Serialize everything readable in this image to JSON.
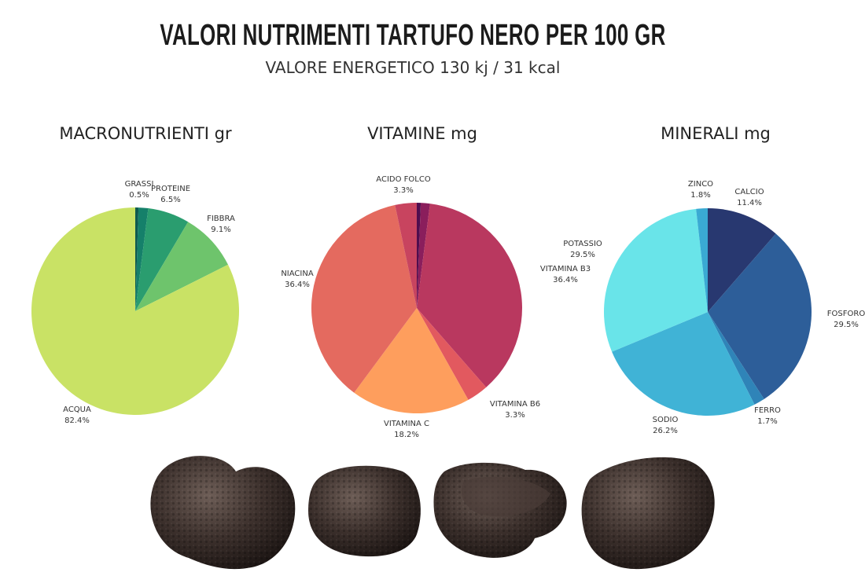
{
  "header": {
    "title": "VALORI NUTRIMENTI TARTUFO NERO PER 100 GR",
    "subtitle": "VALORE ENERGETICO 130 kj / 31 kcal"
  },
  "chart_data": [
    {
      "type": "pie",
      "title": "MACRONUTRIENTI gr",
      "start_angle_deg": 0,
      "direction": "clockwise",
      "slices": [
        {
          "label": "GRASSI",
          "value": 0.5,
          "display": "0.5%",
          "color": "#0e5a4f"
        },
        {
          "label": "",
          "value": 1.5,
          "display": "",
          "color": "#15806a"
        },
        {
          "label": "PROTEINE",
          "value": 6.5,
          "display": "6.5%",
          "color": "#2a9d6f"
        },
        {
          "label": "FIBBRA",
          "value": 9.1,
          "display": "9.1%",
          "color": "#6ec46c"
        },
        {
          "label": "ACQUA",
          "value": 82.4,
          "display": "82.4%",
          "color": "#c9e265"
        }
      ]
    },
    {
      "type": "pie",
      "title": "VITAMINE mg",
      "start_angle_deg": 0,
      "direction": "clockwise",
      "slices": [
        {
          "label": "",
          "value": 0.6,
          "display": "",
          "color": "#4f0d4f"
        },
        {
          "label": "",
          "value": 1.4,
          "display": "",
          "color": "#8a1e5c"
        },
        {
          "label": "VITAMINA B3",
          "value": 36.4,
          "display": "36.4%",
          "color": "#b9385f"
        },
        {
          "label": "VITAMINA B6",
          "value": 3.3,
          "display": "3.3%",
          "color": "#e2595f"
        },
        {
          "label": "VITAMINA C",
          "value": 18.2,
          "display": "18.2%",
          "color": "#fe9e5d"
        },
        {
          "label": "NIACINA",
          "value": 36.4,
          "display": "36.4%",
          "color": "#e46a5f"
        },
        {
          "label": "ACIDO FOLCO",
          "value": 3.3,
          "display": "3.3%",
          "color": "#c8445f"
        }
      ]
    },
    {
      "type": "pie",
      "title": "MINERALI mg",
      "start_angle_deg": 0,
      "direction": "clockwise",
      "slices": [
        {
          "label": "CALCIO",
          "value": 11.4,
          "display": "11.4%",
          "color": "#283870"
        },
        {
          "label": "FOSFORO",
          "value": 29.5,
          "display": "29.5%",
          "color": "#2d5e99"
        },
        {
          "label": "FERRO",
          "value": 1.7,
          "display": "1.7%",
          "color": "#2f84b8"
        },
        {
          "label": "SODIO",
          "value": 26.2,
          "display": "26.2%",
          "color": "#40b3d6"
        },
        {
          "label": "POTASSIO",
          "value": 29.5,
          "display": "29.5%",
          "color": "#69e4e9"
        },
        {
          "label": "ZINCO",
          "value": 1.8,
          "display": "1.8%",
          "color": "#3aaad3"
        }
      ]
    }
  ],
  "decoration": {
    "icon": "black-truffle-icon",
    "truffle_color": "#3c302c",
    "truffle_highlight": "#6e5e57"
  }
}
